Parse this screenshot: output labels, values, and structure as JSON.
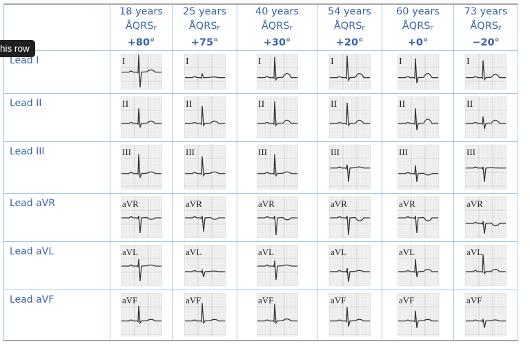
{
  "tooltip": "his row",
  "columns": [
    {
      "age": "18 years",
      "axis_label": "ÅQRS",
      "axis_sub": "F",
      "axis": "+80°"
    },
    {
      "age": "25 years",
      "axis_label": "ÅQRS",
      "axis_sub": "F",
      "axis": "+75°"
    },
    {
      "age": "40 years",
      "axis_label": "ÅQRS",
      "axis_sub": "F",
      "axis": "+30°"
    },
    {
      "age": "54 years",
      "axis_label": "ÅQRS",
      "axis_sub": "F",
      "axis": "+20°"
    },
    {
      "age": "60 years",
      "axis_label": "ÅQRS",
      "axis_sub": "F",
      "axis": "+0°"
    },
    {
      "age": "73 years",
      "axis_label": "ÅQRS",
      "axis_sub": "F",
      "axis": "−20°"
    }
  ],
  "rows": [
    {
      "label": "Lead I",
      "trace_label": "I"
    },
    {
      "label": "Lead II",
      "trace_label": "II"
    },
    {
      "label": "Lead III",
      "trace_label": "III"
    },
    {
      "label": "Lead aVR",
      "trace_label": "aVR"
    },
    {
      "label": "Lead aVL",
      "trace_label": "aVL"
    },
    {
      "label": "Lead aVF",
      "trace_label": "aVF"
    }
  ],
  "colors": {
    "text": "#3a64a8",
    "grid_border": "#9dc3e6",
    "tooltip_bg": "#1f1f1f"
  }
}
